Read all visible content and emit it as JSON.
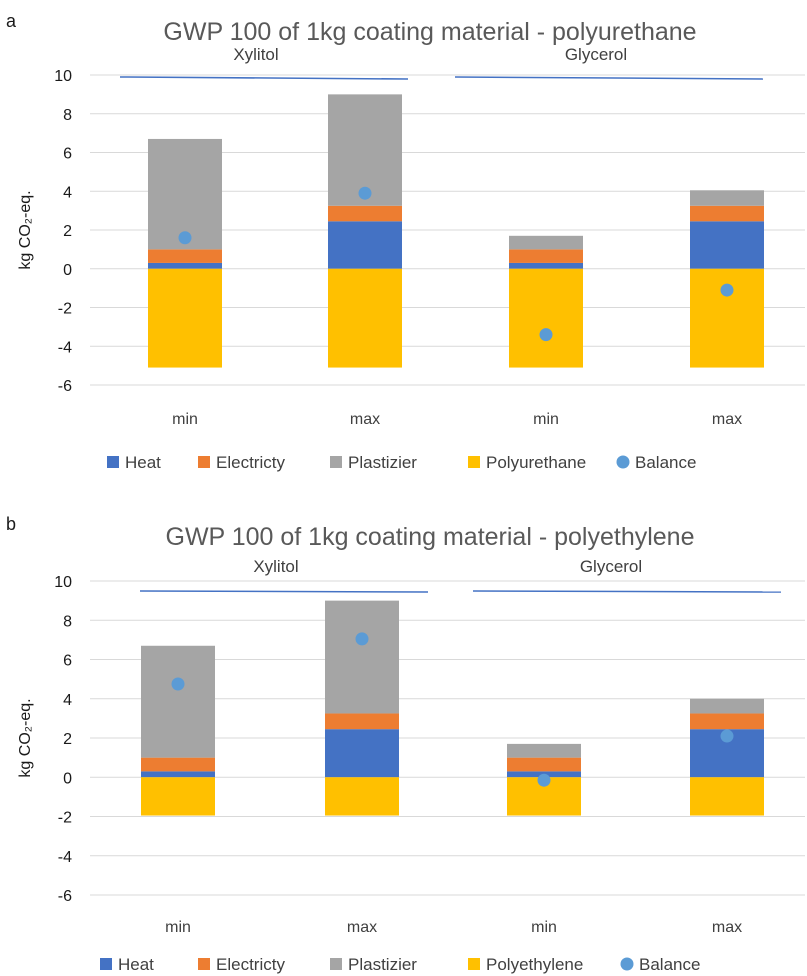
{
  "colors": {
    "Heat": "#4472C4",
    "Electricty": "#ED7D31",
    "Plastizier": "#A5A5A5",
    "Polyurethane": "#FFC000",
    "Polyethylene": "#FFC000",
    "Balance": "#5B9BD5",
    "gridline": "#D9D9D9",
    "groupline": "#4472C4"
  },
  "chart_data": [
    {
      "panel_label": "a",
      "type": "bar",
      "stacked": true,
      "title": "GWP 100 of 1kg coating material - polyurethane",
      "ylabel": "kg CO₂-eq.",
      "ylim": [
        -6,
        10
      ],
      "yticks": [
        -6,
        -4,
        -2,
        0,
        2,
        4,
        6,
        8,
        10
      ],
      "grid": true,
      "legend_position": "bottom",
      "groups": [
        "Xylitol",
        "Glycerol"
      ],
      "categories": [
        "min",
        "max",
        "min",
        "max"
      ],
      "series": [
        {
          "name": "Heat",
          "type": "bar",
          "values": [
            0.3,
            2.45,
            0.3,
            2.45
          ]
        },
        {
          "name": "Electricty",
          "type": "bar",
          "values": [
            0.7,
            0.8,
            0.7,
            0.8
          ]
        },
        {
          "name": "Plastizier",
          "type": "bar",
          "values": [
            5.7,
            5.75,
            0.7,
            0.8
          ]
        },
        {
          "name": "Polyurethane",
          "type": "bar",
          "values": [
            -5.1,
            -5.1,
            -5.1,
            -5.1
          ]
        },
        {
          "name": "Balance",
          "type": "scatter",
          "values": [
            1.6,
            3.9,
            -3.4,
            -1.1
          ]
        }
      ]
    },
    {
      "panel_label": "b",
      "type": "bar",
      "stacked": true,
      "title": "GWP 100 of 1kg coating material - polyethylene",
      "ylabel": "kg CO₂-eq.",
      "ylim": [
        -6,
        10
      ],
      "yticks": [
        -6,
        -4,
        -2,
        0,
        2,
        4,
        6,
        8,
        10
      ],
      "grid": true,
      "legend_position": "bottom",
      "groups": [
        "Xylitol",
        "Glycerol"
      ],
      "categories": [
        "min",
        "max",
        "min",
        "max"
      ],
      "series": [
        {
          "name": "Heat",
          "type": "bar",
          "values": [
            0.3,
            2.45,
            0.3,
            2.45
          ]
        },
        {
          "name": "Electricty",
          "type": "bar",
          "values": [
            0.7,
            0.8,
            0.7,
            0.8
          ]
        },
        {
          "name": "Plastizier",
          "type": "bar",
          "values": [
            5.7,
            5.75,
            0.7,
            0.75
          ]
        },
        {
          "name": "Polyethylene",
          "type": "bar",
          "values": [
            -1.95,
            -1.95,
            -1.95,
            -1.95
          ]
        },
        {
          "name": "Balance",
          "type": "scatter",
          "values": [
            4.75,
            7.05,
            -0.15,
            2.1
          ]
        }
      ]
    }
  ]
}
